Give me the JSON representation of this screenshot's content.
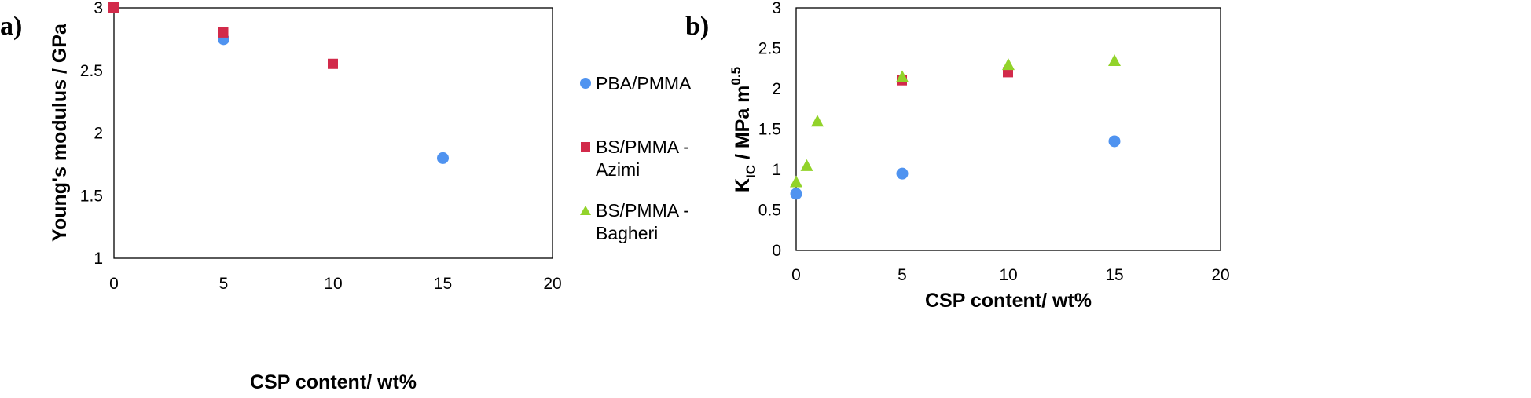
{
  "legend": {
    "entries": [
      {
        "series": "PBA/PMMA",
        "lines": [
          "PBA/PMMA"
        ],
        "marker": "circle",
        "color": "#4f93f0"
      },
      {
        "series": "BS/PMMA - Azimi",
        "lines": [
          "BS/PMMA -",
          "Azimi"
        ],
        "marker": "square",
        "color": "#d22a4a"
      },
      {
        "series": "BS/PMMA - Bagheri",
        "lines": [
          "BS/PMMA -",
          "Bagheri"
        ],
        "marker": "triangle",
        "color": "#92d32a"
      }
    ]
  },
  "chart_data": [
    {
      "panel_label": "a)",
      "type": "scatter",
      "xlabel": "CSP content/ wt%",
      "ylabel": "Young's modulus / GPa",
      "xlim": [
        0,
        20
      ],
      "ylim": [
        1,
        3
      ],
      "xticks": [
        "0",
        "5",
        "10",
        "15",
        "20"
      ],
      "yticks": [
        "1",
        "1.5",
        "2",
        "2.5",
        "3"
      ],
      "grid": false,
      "legend_position": "right",
      "series": [
        {
          "name": "PBA/PMMA",
          "marker": "circle",
          "color": "#4f93f0",
          "points": [
            {
              "x": 5,
              "y": 2.75
            },
            {
              "x": 15,
              "y": 1.8
            }
          ]
        },
        {
          "name": "BS/PMMA - Azimi",
          "marker": "square",
          "color": "#d22a4a",
          "points": [
            {
              "x": 0,
              "y": 3.0
            },
            {
              "x": 5,
              "y": 2.8
            },
            {
              "x": 10,
              "y": 2.55
            }
          ]
        }
      ]
    },
    {
      "panel_label": "b)",
      "type": "scatter",
      "xlabel": "CSP content/ wt%",
      "ylabel": "KIC / MPa m0.5",
      "xlim": [
        0,
        20
      ],
      "ylim": [
        0,
        3
      ],
      "xticks": [
        "0",
        "5",
        "10",
        "15",
        "20"
      ],
      "yticks": [
        "0",
        "0.5",
        "1",
        "1.5",
        "2",
        "2.5",
        "3"
      ],
      "grid": false,
      "series": [
        {
          "name": "PBA/PMMA",
          "marker": "circle",
          "color": "#4f93f0",
          "points": [
            {
              "x": 0,
              "y": 0.7
            },
            {
              "x": 5,
              "y": 0.95
            },
            {
              "x": 15,
              "y": 1.35
            }
          ]
        },
        {
          "name": "BS/PMMA - Azimi",
          "marker": "square",
          "color": "#d22a4a",
          "points": [
            {
              "x": 5,
              "y": 2.1
            },
            {
              "x": 10,
              "y": 2.2
            }
          ]
        },
        {
          "name": "BS/PMMA - Bagheri",
          "marker": "triangle",
          "color": "#92d32a",
          "points": [
            {
              "x": 0,
              "y": 0.85
            },
            {
              "x": 0.5,
              "y": 1.05
            },
            {
              "x": 1,
              "y": 1.6
            },
            {
              "x": 5,
              "y": 2.15
            },
            {
              "x": 10,
              "y": 2.3
            },
            {
              "x": 15,
              "y": 2.35
            }
          ]
        }
      ]
    }
  ]
}
